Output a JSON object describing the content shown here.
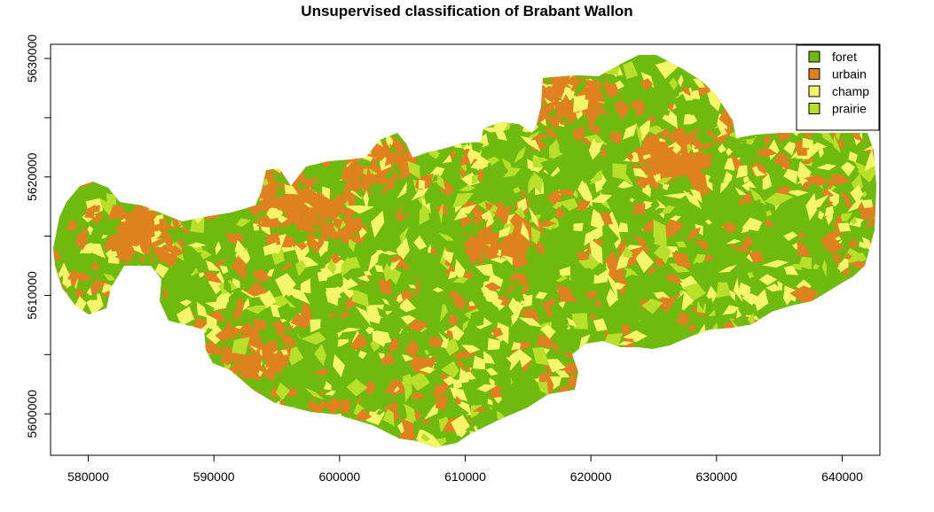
{
  "title": "Unsupervised classification of Brabant Wallon",
  "map": {
    "region": "Brabant Wallon",
    "x_range": [
      577000,
      643000
    ],
    "y_range": [
      5596500,
      5631200
    ],
    "x_ticks": [
      580000,
      590000,
      600000,
      610000,
      620000,
      630000,
      640000
    ],
    "y_ticks": [
      5600000,
      5610000,
      5620000,
      5630000
    ],
    "x_tick_labels": [
      "580000",
      "590000",
      "600000",
      "610000",
      "620000",
      "630000",
      "640000"
    ],
    "y_tick_labels": [
      "5600000",
      "5610000",
      "5620000",
      "5630000"
    ]
  },
  "legend": {
    "position": "top-right",
    "items": [
      {
        "label": "foret",
        "color": "#6fba0e"
      },
      {
        "label": "urbain",
        "color": "#e0811f"
      },
      {
        "label": "champ",
        "color": "#f5f56a"
      },
      {
        "label": "prairie",
        "color": "#b8e02a"
      }
    ]
  }
}
